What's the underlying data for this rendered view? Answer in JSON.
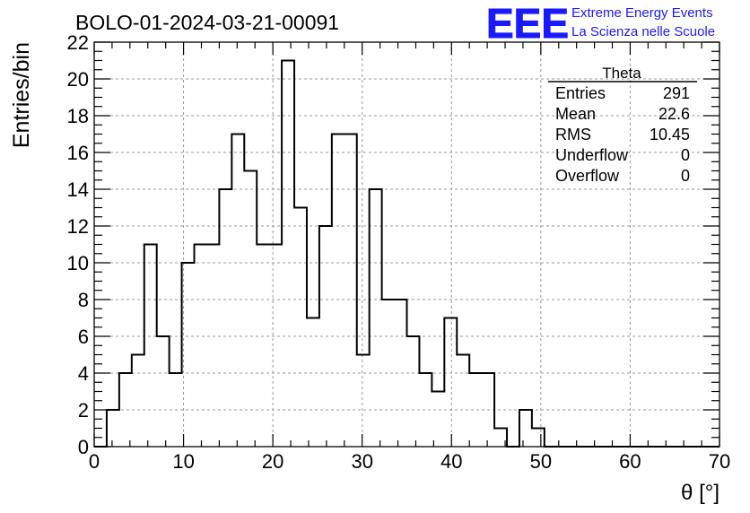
{
  "chart_data": {
    "type": "histogram",
    "title": "BOLO-01-2024-03-21-00091",
    "xlabel": "θ [°]",
    "ylabel": "Entries/bin",
    "xlim": [
      0,
      70
    ],
    "ylim": [
      0,
      22
    ],
    "bin_width": 1.4,
    "x_ticks": [
      0,
      10,
      20,
      30,
      40,
      50,
      60,
      70
    ],
    "y_ticks": [
      0,
      2,
      4,
      6,
      8,
      10,
      12,
      14,
      16,
      18,
      20,
      22
    ],
    "grid": true,
    "values": [
      0,
      2,
      4,
      5,
      11,
      6,
      4,
      10,
      11,
      11,
      14,
      17,
      15,
      11,
      11,
      21,
      13,
      7,
      12,
      17,
      17,
      5,
      14,
      8,
      8,
      6,
      4,
      3,
      7,
      5,
      4,
      4,
      1,
      0,
      2,
      1,
      0,
      0,
      0,
      0,
      0,
      0,
      0,
      0,
      0,
      0,
      0,
      0,
      0,
      0
    ],
    "stats": {
      "title": "Theta",
      "rows": [
        {
          "label": "Entries",
          "value": "291"
        },
        {
          "label": "Mean",
          "value": "22.6"
        },
        {
          "label": "RMS",
          "value": "10.45"
        },
        {
          "label": "Underflow",
          "value": "0"
        },
        {
          "label": "Overflow",
          "value": "0"
        }
      ]
    }
  },
  "logo": {
    "mark": "EEE",
    "line1": "Extreme Energy Events",
    "line2": "La Scienza nelle Scuole",
    "color": "#1a1aff"
  }
}
